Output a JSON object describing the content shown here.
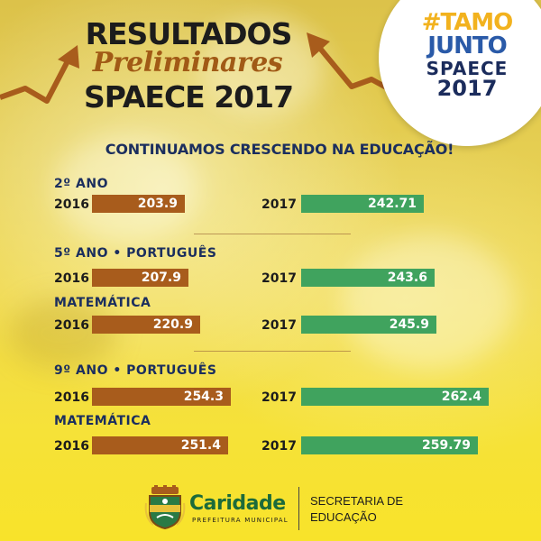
{
  "header": {
    "line1": "RESULTADOS",
    "line2": "Preliminares",
    "line3": "SPAECE 2017"
  },
  "badge": {
    "line1": "#TAMO",
    "line2": "JUNTO",
    "line3": "SPAECE",
    "line4": "2017"
  },
  "subtitle": "CONTINUAMOS CRESCENDO NA EDUCAÇÃO!",
  "sections": [
    {
      "title": "2º ANO",
      "rows": [
        {
          "label": "",
          "left_year": "2016",
          "left_value": "203.9",
          "right_year": "2017",
          "right_value": "242.71"
        }
      ]
    },
    {
      "title": "5º ANO • PORTUGUÊS",
      "rows": [
        {
          "label": "",
          "left_year": "2016",
          "left_value": "207.9",
          "right_year": "2017",
          "right_value": "243.6"
        },
        {
          "label": "MATEMÁTICA",
          "left_year": "2016",
          "left_value": "220.9",
          "right_year": "2017",
          "right_value": "245.9"
        }
      ]
    },
    {
      "title": "9º ANO • PORTUGUÊS",
      "rows": [
        {
          "label": "",
          "left_year": "2016",
          "left_value": "254.3",
          "right_year": "2017",
          "right_value": "262.4"
        },
        {
          "label": "MATEMÁTICA",
          "left_year": "2016",
          "left_value": "251.4",
          "right_year": "2017",
          "right_value": "259.79"
        }
      ]
    }
  ],
  "footer": {
    "city_name": "Caridade",
    "city_sub": "PREFEITURA MUNICIPAL",
    "dept_line1": "SECRETARIA DE",
    "dept_line2": "EDUCAÇÃO"
  },
  "colors": {
    "bar_2016": "#a85c1c",
    "bar_2017": "#40a35e",
    "title_blue": "#1b2e5e"
  }
}
